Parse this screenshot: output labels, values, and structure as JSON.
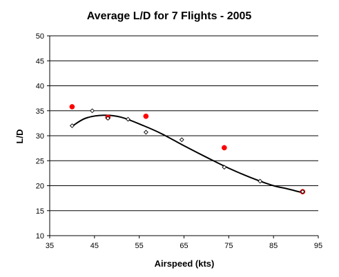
{
  "chart_data": {
    "type": "scatter",
    "title": "Average L/D for 7 Flights -  2005",
    "xlabel": "Airspeed (kts)",
    "ylabel": "L/D",
    "xlim": [
      35,
      95
    ],
    "ylim": [
      10,
      50
    ],
    "x_ticks": [
      35,
      45,
      55,
      65,
      75,
      85,
      95
    ],
    "y_ticks": [
      10,
      15,
      20,
      25,
      30,
      35,
      40,
      45,
      50
    ],
    "grid": "horizontal",
    "series": [
      {
        "marker": "filled-circle",
        "color": "#ff0000",
        "points": [
          {
            "x": 40,
            "y": 35.8
          },
          {
            "x": 48,
            "y": 33.7
          },
          {
            "x": 56.5,
            "y": 33.9
          },
          {
            "x": 74,
            "y": 27.6
          },
          {
            "x": 91.5,
            "y": 18.8
          }
        ]
      },
      {
        "marker": "open-diamond",
        "color": "#000000",
        "points": [
          {
            "x": 40,
            "y": 32
          },
          {
            "x": 44.5,
            "y": 35
          },
          {
            "x": 48,
            "y": 33.5
          },
          {
            "x": 52.5,
            "y": 33.3
          },
          {
            "x": 56.5,
            "y": 30.7
          },
          {
            "x": 64.5,
            "y": 29.2
          },
          {
            "x": 74,
            "y": 23.7
          },
          {
            "x": 82,
            "y": 20.9
          },
          {
            "x": 91.5,
            "y": 18.8
          }
        ]
      }
    ],
    "trendline": {
      "type": "smooth-fit",
      "color": "#000000",
      "points": [
        {
          "x": 40,
          "y": 31.9
        },
        {
          "x": 43,
          "y": 33.5
        },
        {
          "x": 47,
          "y": 34.1
        },
        {
          "x": 51,
          "y": 33.7
        },
        {
          "x": 56,
          "y": 32.0
        },
        {
          "x": 60,
          "y": 30.4
        },
        {
          "x": 65,
          "y": 28.0
        },
        {
          "x": 70,
          "y": 25.7
        },
        {
          "x": 75,
          "y": 23.5
        },
        {
          "x": 80,
          "y": 21.6
        },
        {
          "x": 85,
          "y": 20.0
        },
        {
          "x": 88,
          "y": 19.4
        },
        {
          "x": 91.5,
          "y": 18.6
        }
      ]
    }
  }
}
